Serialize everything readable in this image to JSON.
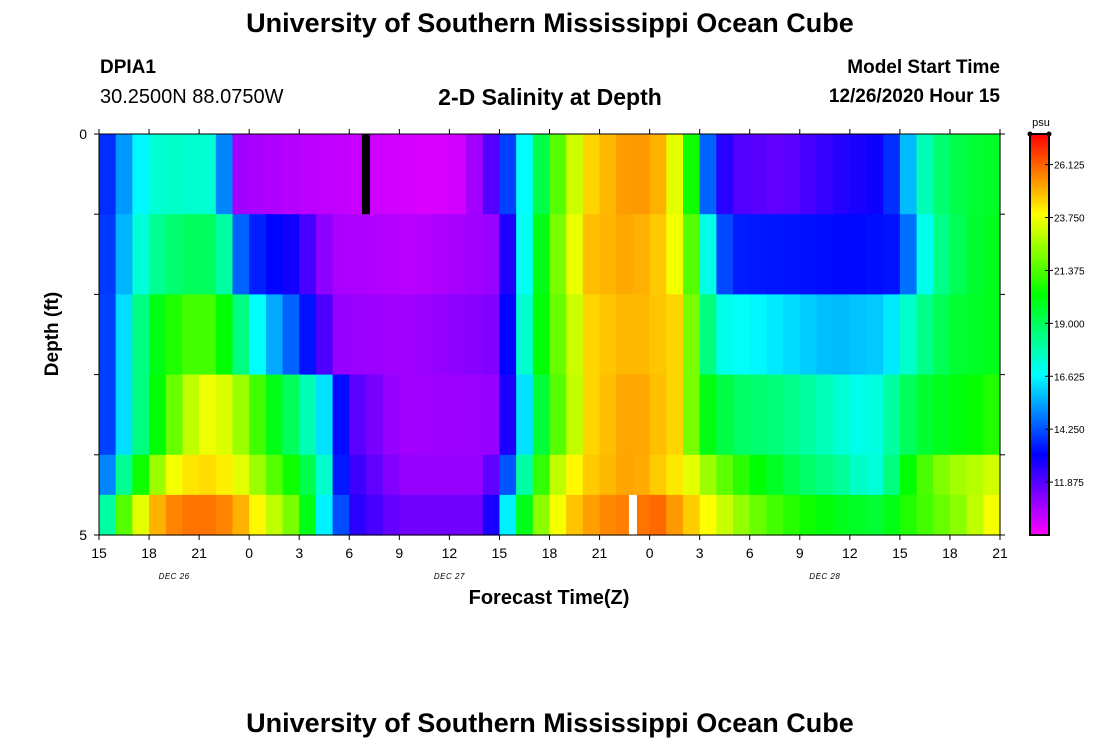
{
  "header": {
    "title": "University of Southern Mississippi Ocean Cube",
    "station_id": "DPIA1",
    "station_coords": "30.2500N 88.0750W",
    "plot_title": "2-D Salinity at Depth",
    "model_start_label": "Model Start Time",
    "model_start_value": "12/26/2020 Hour 15"
  },
  "footer": {
    "title": "University of Southern Mississippi Ocean Cube"
  },
  "chart_data": {
    "type": "heatmap",
    "title": "2-D Salinity at Depth",
    "xlabel": "Forecast Time(Z)",
    "ylabel": "Depth (ft)",
    "x_ticks": [
      "15",
      "18",
      "21",
      "0",
      "3",
      "6",
      "9",
      "12",
      "15",
      "18",
      "21",
      "0",
      "3",
      "6",
      "9",
      "12",
      "15",
      "18",
      "21"
    ],
    "x_hours": [
      0,
      3,
      6,
      9,
      12,
      15,
      18,
      21,
      24,
      27,
      30,
      33,
      36,
      39,
      42,
      45,
      48,
      51,
      54
    ],
    "date_labels": [
      {
        "label": "DEC 26",
        "hour": 4.5
      },
      {
        "label": "DEC 27",
        "hour": 21
      },
      {
        "label": "DEC 28",
        "hour": 43.5
      }
    ],
    "y_ticks": [
      "0",
      "5"
    ],
    "ylim": [
      0,
      5
    ],
    "colorbar": {
      "unit": "psu",
      "min": 9.5,
      "max": 27.5,
      "ticks": [
        "26.125",
        "23.750",
        "21.375",
        "19.000",
        "16.625",
        "14.250",
        "11.875"
      ],
      "tick_values": [
        26.125,
        23.75,
        21.375,
        19.0,
        16.625,
        14.25,
        11.875
      ]
    },
    "time_hours": [
      0,
      1,
      2,
      3,
      4,
      5,
      6,
      7,
      8,
      9,
      10,
      11,
      12,
      13,
      14,
      15,
      16,
      17,
      18,
      19,
      20,
      21,
      22,
      23,
      24,
      25,
      26,
      27,
      28,
      29,
      30,
      31,
      32,
      33,
      34,
      35,
      36,
      37,
      38,
      39,
      40,
      41,
      42,
      43,
      44,
      45,
      46,
      47,
      48,
      49,
      50,
      51,
      52,
      53,
      54
    ],
    "depth_rows": [
      "0-1",
      "1-2",
      "2-3",
      "3-4",
      "4-4.5",
      "4.5-5"
    ],
    "row_keyframes": [
      [
        [
          0,
          13.0
        ],
        [
          1,
          14.5
        ],
        [
          2,
          16.0
        ],
        [
          3,
          17.2
        ],
        [
          4,
          17.5
        ],
        [
          6.8,
          17.3
        ],
        [
          7.8,
          14.0
        ],
        [
          8.5,
          10.8
        ],
        [
          12,
          10.5
        ],
        [
          20,
          10.0
        ],
        [
          22,
          10.2
        ],
        [
          24,
          12.5
        ],
        [
          25,
          15.5
        ],
        [
          26,
          18.0
        ],
        [
          27,
          20.5
        ],
        [
          28,
          22.5
        ],
        [
          29.5,
          24.5
        ],
        [
          32,
          25.5
        ],
        [
          33.5,
          25.0
        ],
        [
          34.5,
          23.5
        ],
        [
          35.5,
          20.5
        ],
        [
          36,
          17.0
        ],
        [
          36.5,
          14.5
        ],
        [
          37,
          13.0
        ],
        [
          38,
          12.0
        ],
        [
          41,
          11.7
        ],
        [
          44,
          12.5
        ],
        [
          47,
          13.0
        ],
        [
          48,
          14.5
        ],
        [
          49,
          17.0
        ],
        [
          50,
          18.5
        ],
        [
          52,
          19.5
        ],
        [
          54,
          19.8
        ]
      ],
      [
        [
          0,
          13.0
        ],
        [
          1,
          14.8
        ],
        [
          2,
          16.5
        ],
        [
          3,
          18.0
        ],
        [
          5,
          19.0
        ],
        [
          7,
          19.0
        ],
        [
          8,
          17.0
        ],
        [
          8.6,
          14.0
        ],
        [
          10,
          13.3
        ],
        [
          12,
          12.7
        ],
        [
          13,
          11.5
        ],
        [
          14,
          10.7
        ],
        [
          19,
          10.5
        ],
        [
          24,
          11.0
        ],
        [
          24.6,
          13.0
        ],
        [
          25.3,
          16.0
        ],
        [
          26,
          19.0
        ],
        [
          27,
          21.0
        ],
        [
          28,
          23.0
        ],
        [
          29.5,
          24.8
        ],
        [
          32,
          25.2
        ],
        [
          34,
          24.5
        ],
        [
          35,
          23.0
        ],
        [
          36,
          20.0
        ],
        [
          36.6,
          16.5
        ],
        [
          37.2,
          14.5
        ],
        [
          38,
          13.5
        ],
        [
          45,
          13.2
        ],
        [
          48,
          13.4
        ],
        [
          49,
          16.0
        ],
        [
          50,
          18.0
        ],
        [
          52,
          19.5
        ],
        [
          54,
          20.0
        ]
      ],
      [
        [
          0,
          13.0
        ],
        [
          1,
          15.0
        ],
        [
          2,
          17.5
        ],
        [
          3,
          19.5
        ],
        [
          4,
          20.5
        ],
        [
          6,
          21.5
        ],
        [
          7,
          21.0
        ],
        [
          8,
          19.5
        ],
        [
          9,
          17.5
        ],
        [
          10,
          16.0
        ],
        [
          11,
          15.0
        ],
        [
          12,
          14.0
        ],
        [
          13.5,
          12.0
        ],
        [
          14.5,
          11.0
        ],
        [
          18,
          10.8
        ],
        [
          24,
          11.3
        ],
        [
          24.6,
          13.5
        ],
        [
          25.3,
          16.5
        ],
        [
          26,
          19.5
        ],
        [
          27,
          21.0
        ],
        [
          28,
          22.5
        ],
        [
          29.5,
          24.5
        ],
        [
          32,
          25.0
        ],
        [
          34.5,
          24.5
        ],
        [
          35.5,
          22.0
        ],
        [
          36.5,
          18.5
        ],
        [
          37.5,
          17.0
        ],
        [
          40,
          16.5
        ],
        [
          44,
          15.7
        ],
        [
          47,
          16.0
        ],
        [
          48,
          16.8
        ],
        [
          49,
          18.0
        ],
        [
          51,
          19.5
        ],
        [
          54,
          20.0
        ]
      ],
      [
        [
          0,
          13.0
        ],
        [
          1,
          15.0
        ],
        [
          2,
          17.5
        ],
        [
          3,
          19.5
        ],
        [
          4,
          21.0
        ],
        [
          5,
          22.5
        ],
        [
          6,
          23.5
        ],
        [
          7,
          23.8
        ],
        [
          8,
          23.0
        ],
        [
          9,
          22.0
        ],
        [
          10,
          20.5
        ],
        [
          11,
          19.5
        ],
        [
          12,
          18.5
        ],
        [
          13,
          17.0
        ],
        [
          13.7,
          16.0
        ],
        [
          14.2,
          14.0
        ],
        [
          15,
          12.0
        ],
        [
          18,
          10.8
        ],
        [
          24,
          11.0
        ],
        [
          25,
          14.5
        ],
        [
          25.7,
          17.0
        ],
        [
          26.5,
          19.5
        ],
        [
          27.5,
          21.5
        ],
        [
          28.5,
          23.0
        ],
        [
          29.5,
          24.5
        ],
        [
          32,
          25.3
        ],
        [
          34.5,
          24.5
        ],
        [
          35.5,
          22.0
        ],
        [
          36.5,
          20.0
        ],
        [
          38,
          19.0
        ],
        [
          41,
          18.5
        ],
        [
          44,
          17.5
        ],
        [
          46,
          16.8
        ],
        [
          47,
          17.5
        ],
        [
          48,
          18.5
        ],
        [
          49,
          19.5
        ],
        [
          51,
          20.0
        ],
        [
          53,
          20.5
        ],
        [
          54,
          21.0
        ]
      ],
      [
        [
          0,
          13.0
        ],
        [
          0.5,
          15.0
        ],
        [
          1,
          17.0
        ],
        [
          2,
          19.5
        ],
        [
          3,
          21.5
        ],
        [
          4,
          23.5
        ],
        [
          6,
          24.5
        ],
        [
          8,
          24.0
        ],
        [
          9.5,
          22.5
        ],
        [
          11,
          21.0
        ],
        [
          12,
          20.0
        ],
        [
          13,
          18.5
        ],
        [
          13.7,
          17.0
        ],
        [
          14.2,
          14.0
        ],
        [
          15,
          12.5
        ],
        [
          18,
          11.0
        ],
        [
          23,
          11.0
        ],
        [
          24,
          12.5
        ],
        [
          24.7,
          15.0
        ],
        [
          25.5,
          18.0
        ],
        [
          26.5,
          21.0
        ],
        [
          27.5,
          23.0
        ],
        [
          29,
          24.5
        ],
        [
          32,
          25.3
        ],
        [
          35,
          24.0
        ],
        [
          37,
          22.0
        ],
        [
          39,
          20.5
        ],
        [
          42,
          19.0
        ],
        [
          45,
          18.0
        ],
        [
          46,
          17.0
        ],
        [
          47,
          17.5
        ],
        [
          48,
          19.5
        ],
        [
          49,
          21.0
        ],
        [
          51,
          22.5
        ],
        [
          53,
          23.0
        ],
        [
          54,
          23.5
        ]
      ],
      [
        [
          0,
          15.0
        ],
        [
          0.5,
          18.0
        ],
        [
          1,
          20.5
        ],
        [
          2,
          22.5
        ],
        [
          3,
          24.5
        ],
        [
          4,
          25.5
        ],
        [
          6,
          26.0
        ],
        [
          8,
          25.5
        ],
        [
          9.5,
          24.0
        ],
        [
          11,
          22.5
        ],
        [
          12,
          21.5
        ],
        [
          13,
          18.5
        ],
        [
          13.5,
          16.5
        ],
        [
          14.3,
          14.5
        ],
        [
          15.5,
          12.5
        ],
        [
          18,
          11.5
        ],
        [
          23,
          11.5
        ],
        [
          24,
          14.0
        ],
        [
          24.5,
          16.5
        ],
        [
          25.2,
          19.0
        ],
        [
          26,
          21.5
        ],
        [
          27,
          23.0
        ],
        [
          28,
          24.5
        ],
        [
          30,
          25.5
        ],
        [
          33.5,
          26.0
        ],
        [
          35,
          25.0
        ],
        [
          37,
          23.5
        ],
        [
          39,
          22.0
        ],
        [
          41,
          21.0
        ],
        [
          44,
          20.0
        ],
        [
          47,
          19.5
        ],
        [
          48,
          20.5
        ],
        [
          50,
          21.5
        ],
        [
          52,
          22.5
        ],
        [
          53,
          23.5
        ],
        [
          54,
          24.0
        ]
      ]
    ],
    "markers": [
      {
        "color": "#000000",
        "hour": 16,
        "row": 0
      },
      {
        "color": "#ffffff",
        "hour": 32,
        "row": 5
      }
    ]
  }
}
